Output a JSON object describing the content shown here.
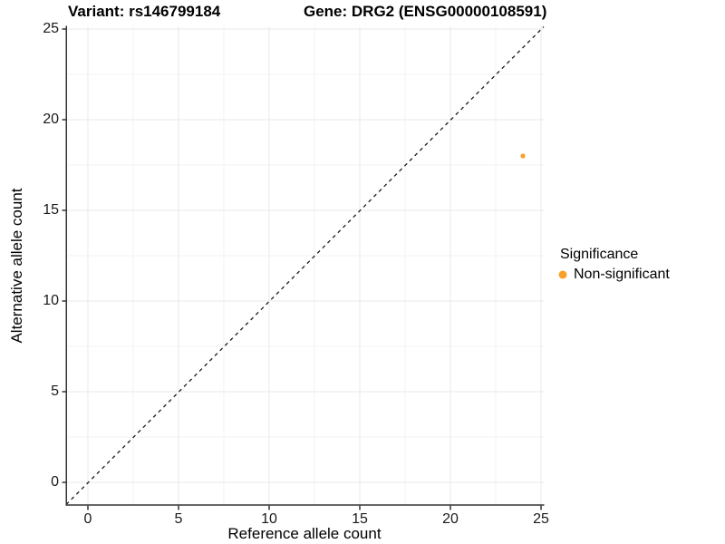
{
  "figure": {
    "title_left": "Variant: rs146799184",
    "title_right": "Gene: DRG2 (ENSG00000108591)"
  },
  "chart_data": {
    "type": "scatter",
    "title": "Variant: rs146799184   Gene: DRG2 (ENSG00000108591)",
    "xlabel": "Reference allele count",
    "ylabel": "Alternative allele count",
    "xlim": [
      -1.25,
      25.15
    ],
    "ylim": [
      -1.25,
      25.15
    ],
    "x_ticks": [
      0,
      5,
      10,
      15,
      20,
      25
    ],
    "y_ticks": [
      0,
      5,
      10,
      15,
      20,
      25
    ],
    "x_tick_labels": [
      "0",
      "5",
      "10",
      "15",
      "20",
      "25"
    ],
    "y_tick_labels": [
      "0",
      "5",
      "10",
      "15",
      "20",
      "25"
    ],
    "grid": "major+minor",
    "reference_line": {
      "equation": "y = x",
      "style": "dashed",
      "color": "#1a1a1a"
    },
    "series": [
      {
        "name": "Non-significant",
        "color": "#F9A02B",
        "point_radius": 2.6,
        "points": [
          {
            "x": 24,
            "y": 18
          }
        ]
      }
    ],
    "legend": {
      "title": "Significance",
      "position": "right",
      "entries": [
        {
          "label": "Non-significant",
          "color": "#F9A02B"
        }
      ]
    },
    "style_colors": {
      "axis": "#333333",
      "grid_major": "#e8e8e8",
      "grid_minor": "#f3f3f3",
      "background": "#ffffff"
    }
  }
}
